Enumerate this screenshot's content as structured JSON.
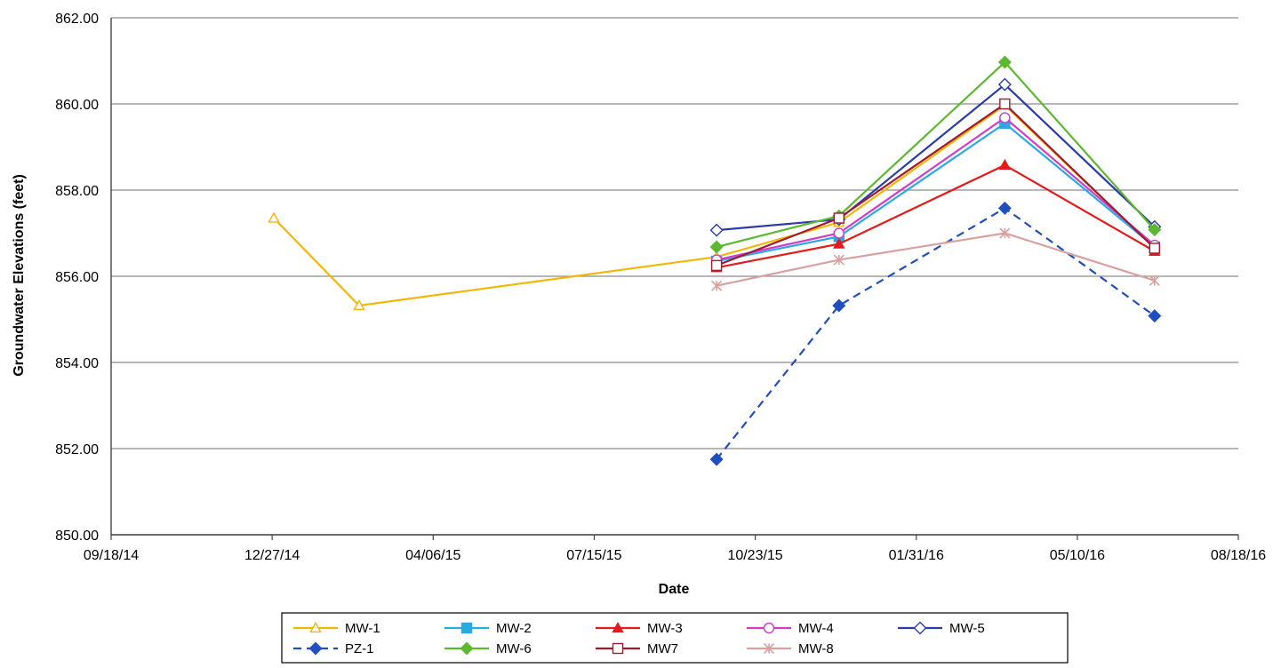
{
  "chart_data": {
    "type": "line",
    "xlabel": "Date",
    "ylabel": "Groundwater Elevations (feet)",
    "x_ticks": [
      "09/18/14",
      "12/27/14",
      "04/06/15",
      "07/15/15",
      "10/23/15",
      "01/31/16",
      "05/10/16",
      "08/18/16"
    ],
    "y_ticks": [
      "850.00",
      "852.00",
      "854.00",
      "856.00",
      "858.00",
      "860.00",
      "862.00"
    ],
    "xlim": [
      "09/18/14",
      "08/18/16"
    ],
    "ylim": [
      850,
      862
    ],
    "grid": "horizontal",
    "legend_position": "bottom",
    "series": [
      {
        "name": "MW-1",
        "color": "#f2b705",
        "marker": "triangle-open",
        "dash": false,
        "x": [
          "12/28/14",
          "02/19/15",
          "09/29/15",
          "12/14/15",
          "03/26/16",
          "06/27/16"
        ],
        "y": [
          857.35,
          855.32,
          856.45,
          857.25,
          859.97,
          856.65
        ]
      },
      {
        "name": "MW-2",
        "color": "#29abe2",
        "marker": "square",
        "dash": false,
        "x": [
          "09/29/15",
          "12/14/15",
          "03/26/16",
          "06/27/16"
        ],
        "y": [
          856.35,
          856.92,
          859.55,
          856.68
        ]
      },
      {
        "name": "MW-3",
        "color": "#e31b1b",
        "marker": "triangle",
        "dash": false,
        "x": [
          "09/29/15",
          "12/14/15",
          "03/26/16",
          "06/27/16"
        ],
        "y": [
          856.2,
          856.75,
          858.58,
          856.58
        ]
      },
      {
        "name": "MW-4",
        "color": "#d13cc6",
        "marker": "circle-open",
        "dash": false,
        "x": [
          "09/29/15",
          "12/14/15",
          "03/26/16",
          "06/27/16"
        ],
        "y": [
          856.38,
          857.0,
          859.68,
          856.72
        ]
      },
      {
        "name": "MW-5",
        "color": "#2a3ca8",
        "marker": "diamond-open",
        "dash": false,
        "x": [
          "09/29/15",
          "12/14/15",
          "03/26/16",
          "06/27/16"
        ],
        "y": [
          857.07,
          857.32,
          860.45,
          857.15
        ]
      },
      {
        "name": "PZ-1",
        "color": "#1f4fbf",
        "marker": "diamond",
        "dash": true,
        "x": [
          "09/29/15",
          "12/14/15",
          "03/26/16",
          "06/27/16"
        ],
        "y": [
          851.75,
          855.32,
          857.58,
          855.08
        ]
      },
      {
        "name": "MW-6",
        "color": "#5cb82e",
        "marker": "diamond",
        "dash": false,
        "x": [
          "09/29/15",
          "12/14/15",
          "03/26/16",
          "06/27/16"
        ],
        "y": [
          856.68,
          857.4,
          860.97,
          857.08
        ]
      },
      {
        "name": "MW7",
        "color": "#9e1b32",
        "marker": "square-open",
        "dash": false,
        "x": [
          "09/29/15",
          "12/14/15",
          "03/26/16",
          "06/27/16"
        ],
        "y": [
          856.25,
          857.35,
          860.0,
          856.65
        ]
      },
      {
        "name": "MW-8",
        "color": "#d9a0a0",
        "marker": "asterisk",
        "dash": false,
        "x": [
          "09/29/15",
          "12/14/15",
          "03/26/16",
          "06/27/16"
        ],
        "y": [
          855.78,
          856.38,
          857.0,
          855.9
        ]
      }
    ]
  }
}
